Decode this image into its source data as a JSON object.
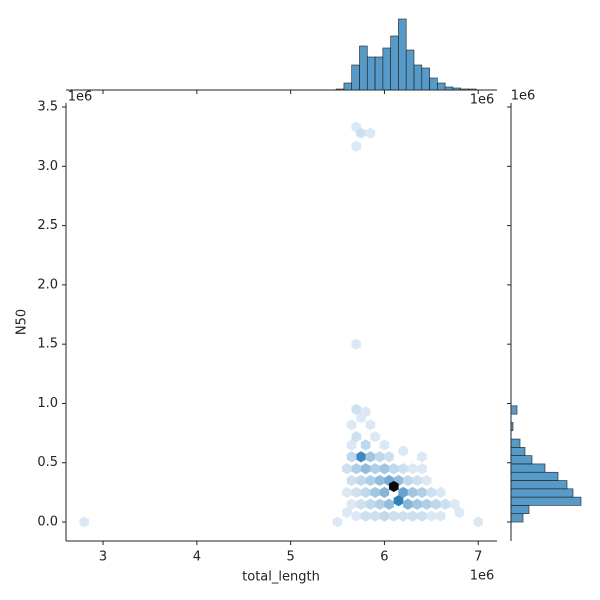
{
  "chart_data": {
    "type": "hexbin-joint",
    "x_label": "total_length",
    "y_label": "N50",
    "x_offset": "1e6",
    "y_offset": "1e6",
    "top_offset": "1e6",
    "right_offset": "1e6",
    "color": "#1f77b4",
    "xlim": [
      2.605,
      7.2
    ],
    "ylim": [
      -0.16,
      3.534
    ],
    "xticks": [
      3,
      4,
      5,
      6,
      7
    ],
    "yticks": [
      {
        "value": 0,
        "label": "0.0"
      },
      0.5,
      {
        "value": 1,
        "label": "1.0"
      },
      1.5,
      {
        "value": 2,
        "label": "2.0"
      },
      2.5,
      {
        "value": 3,
        "label": "3.0"
      },
      3.5
    ],
    "hexbins": {
      "x": [
        2.8,
        5.5,
        5.6,
        5.7,
        5.75,
        5.85,
        5.7,
        5.7,
        5.7,
        5.75,
        5.8,
        5.85,
        5.65,
        5.9,
        5.65,
        5.7,
        5.8,
        5.75,
        5.65,
        5.85,
        5.95,
        6.05,
        5.6,
        5.7,
        5.8,
        5.9,
        6.0,
        6.1,
        6.2,
        6.3,
        6.4,
        5.65,
        5.75,
        5.85,
        5.95,
        6.05,
        6.15,
        6.25,
        6.35,
        6.45,
        5.6,
        5.7,
        5.8,
        5.9,
        6.0,
        6.1,
        6.2,
        6.3,
        6.4,
        6.5,
        6.6,
        5.65,
        5.75,
        5.85,
        5.95,
        6.05,
        6.15,
        6.25,
        6.35,
        6.45,
        6.55,
        6.65,
        6.75,
        5.7,
        5.8,
        5.9,
        6.0,
        6.1,
        6.2,
        6.3,
        6.4,
        6.5,
        6.6,
        6.8,
        7.0,
        6.4,
        6.0,
        6.2
      ],
      "y": [
        0,
        0,
        0.08,
        3.33,
        3.28,
        3.28,
        3.17,
        1.5,
        0.95,
        0.88,
        0.93,
        0.82,
        0.82,
        0.72,
        0.65,
        0.72,
        0.65,
        0.55,
        0.55,
        0.55,
        0.55,
        0.55,
        0.45,
        0.45,
        0.45,
        0.45,
        0.45,
        0.45,
        0.45,
        0.45,
        0.45,
        0.35,
        0.35,
        0.35,
        0.35,
        0.35,
        0.35,
        0.35,
        0.35,
        0.35,
        0.25,
        0.25,
        0.25,
        0.25,
        0.25,
        0.3,
        0.25,
        0.25,
        0.25,
        0.25,
        0.25,
        0.15,
        0.15,
        0.15,
        0.15,
        0.15,
        0.18,
        0.15,
        0.15,
        0.15,
        0.15,
        0.15,
        0.15,
        0.05,
        0.05,
        0.05,
        0.05,
        0.05,
        0.05,
        0.05,
        0.05,
        0.05,
        0.05,
        0.08,
        0,
        0.55,
        0.65,
        0.6
      ],
      "counts": [
        1,
        1,
        1,
        1,
        2,
        1,
        1,
        1,
        2,
        1,
        1,
        1,
        1,
        1,
        1,
        2,
        3,
        12,
        3,
        5,
        3,
        2,
        2,
        4,
        6,
        4,
        5,
        3,
        2,
        1,
        1,
        2,
        3,
        4,
        6,
        8,
        6,
        3,
        2,
        1,
        1,
        2,
        3,
        5,
        7,
        20,
        9,
        5,
        4,
        2,
        1,
        1,
        2,
        3,
        4,
        6,
        13,
        7,
        5,
        4,
        3,
        2,
        1,
        1,
        2,
        2,
        3,
        2,
        2,
        2,
        2,
        1,
        1,
        1,
        1,
        1,
        1,
        1
      ]
    },
    "x_hist": {
      "bins": [
        5.485,
        5.568,
        5.651,
        5.734,
        5.817,
        5.9,
        5.983,
        6.066,
        6.149,
        6.232,
        6.315,
        6.398,
        6.481,
        6.564,
        6.647,
        6.73,
        6.813,
        6.896,
        6.979
      ],
      "counts": [
        1,
        7,
        25,
        44,
        33,
        33,
        42,
        54,
        71,
        40,
        25,
        22,
        12,
        7,
        3,
        2,
        1,
        1
      ]
    },
    "y_hist": {
      "bins": [
        0,
        0.07,
        0.14,
        0.21,
        0.28,
        0.35,
        0.42,
        0.49,
        0.56,
        0.63,
        0.7,
        0.77,
        0.84,
        0.91,
        0.98
      ],
      "counts": [
        12,
        18,
        70,
        62,
        56,
        47,
        34,
        21,
        14,
        9,
        0,
        2,
        0,
        6
      ]
    }
  }
}
